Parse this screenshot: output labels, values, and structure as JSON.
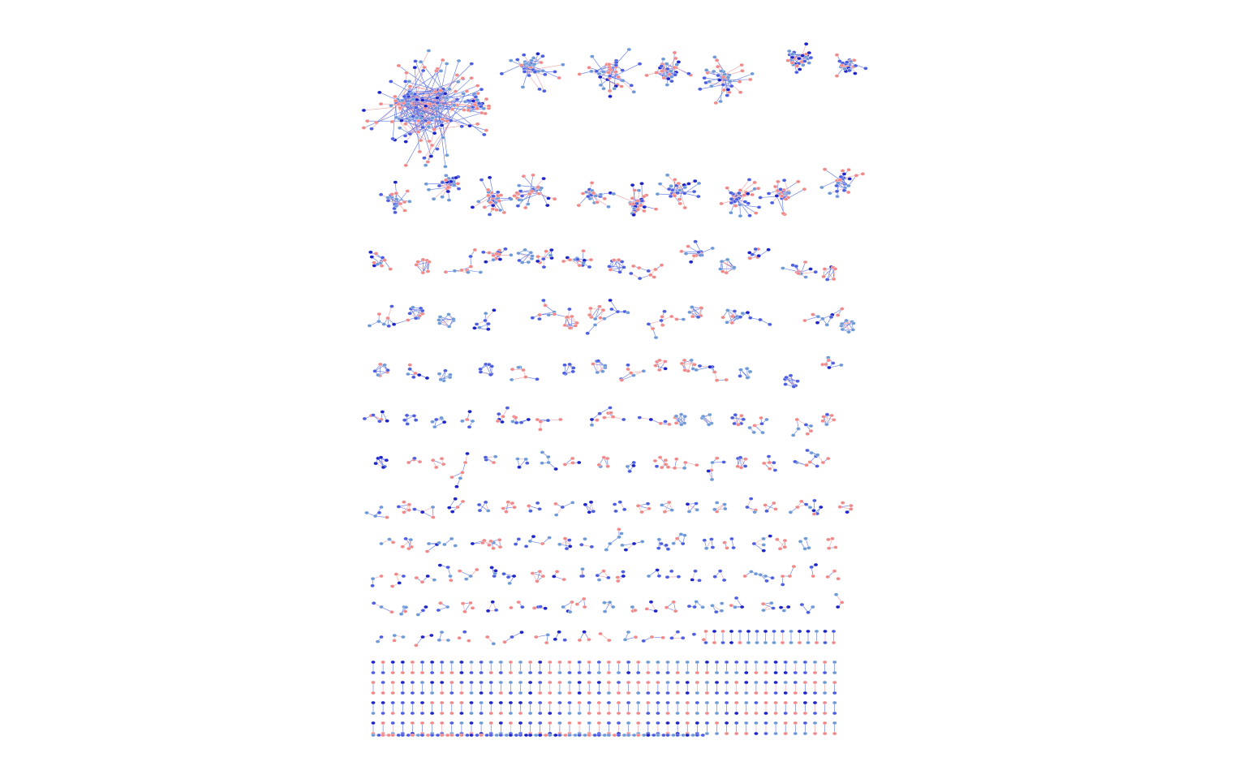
{
  "diagram": {
    "type": "network",
    "layout_style": "connected components packed in rows, largest first",
    "background": "#ffffff",
    "node_colors": {
      "salmon": "#f08a8a",
      "light_blue": "#6f9ad8",
      "blue": "#4d5fe0",
      "dark_blue": "#1d24c8"
    },
    "edge_colors": {
      "blue": "#5a72e6",
      "salmon": "#f0a0a0"
    },
    "labels": []
  }
}
